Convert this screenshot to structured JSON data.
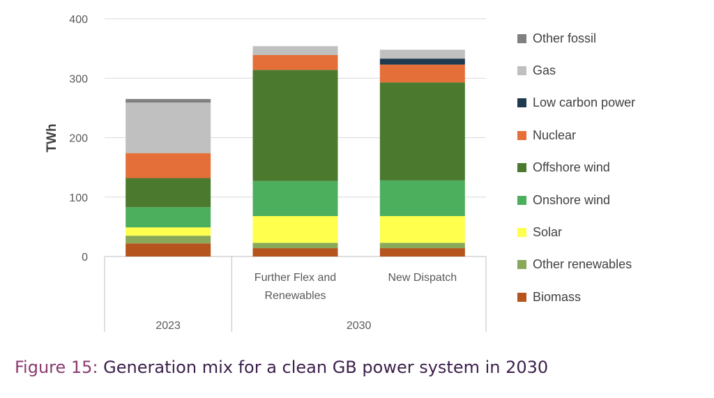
{
  "figure": {
    "number_label": "Figure 15:",
    "title": "Generation mix for a clean GB power system in 2030"
  },
  "chart_data": {
    "type": "bar",
    "stacked": true,
    "ylabel": "TWh",
    "ylim": [
      0,
      400
    ],
    "yticks": [
      0,
      100,
      200,
      300,
      400
    ],
    "grid": true,
    "legend_position": "right",
    "categories": [
      "",
      "Further Flex and Renewables",
      "New Dispatch"
    ],
    "category_lines": [
      [],
      [
        "Further Flex and",
        "Renewables"
      ],
      [
        "New Dispatch"
      ]
    ],
    "groups": [
      {
        "label": "2023",
        "categories": [
          0
        ]
      },
      {
        "label": "2030",
        "categories": [
          1,
          2
        ]
      }
    ],
    "series": [
      {
        "name": "Biomass",
        "color": "#b5541c",
        "values": [
          22,
          14,
          14
        ]
      },
      {
        "name": "Other renewables",
        "color": "#8aa85a",
        "values": [
          13,
          9,
          9
        ]
      },
      {
        "name": "Solar",
        "color": "#ffff4d",
        "values": [
          14,
          45,
          45
        ]
      },
      {
        "name": "Onshore wind",
        "color": "#4caf5e",
        "values": [
          34,
          59,
          60
        ]
      },
      {
        "name": "Offshore wind",
        "color": "#4b7a2f",
        "values": [
          49,
          187,
          165
        ]
      },
      {
        "name": "Nuclear",
        "color": "#e46f38",
        "values": [
          42,
          25,
          30
        ]
      },
      {
        "name": "Low carbon power",
        "color": "#1f3a4f",
        "values": [
          0,
          0,
          10
        ]
      },
      {
        "name": "Gas",
        "color": "#c0c0c0",
        "values": [
          85,
          15,
          15
        ]
      },
      {
        "name": "Other fossil",
        "color": "#808080",
        "values": [
          6,
          0,
          0
        ]
      }
    ]
  }
}
